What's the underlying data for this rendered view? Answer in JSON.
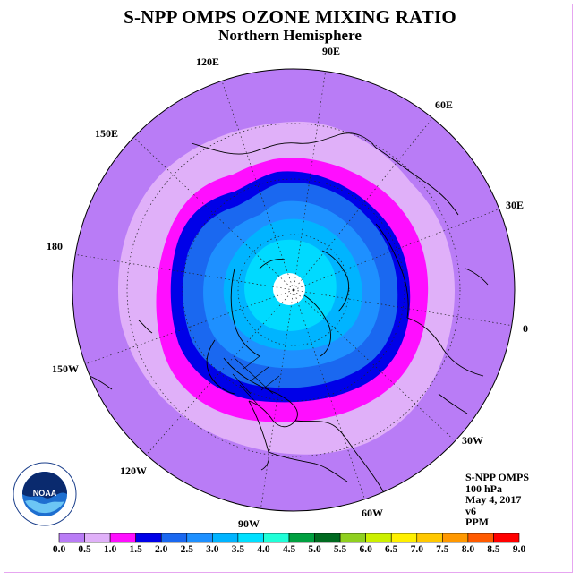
{
  "header": {
    "title": "S-NPP OMPS OZONE MIXING RATIO",
    "subtitle": "Northern Hemisphere"
  },
  "map": {
    "projection": "north-polar-stereographic",
    "longitude_labels": [
      "90E",
      "60E",
      "30E",
      "0",
      "30W",
      "60W",
      "90W",
      "120W",
      "150W",
      "180",
      "150E",
      "120E"
    ],
    "pole_no_data": true
  },
  "info": {
    "instrument": "S-NPP OMPS",
    "level": "100 hPa",
    "date": "May 4, 2017",
    "version": "v6",
    "units": "PPM"
  },
  "colorbar": {
    "labels": [
      "0.0",
      "0.5",
      "1.0",
      "1.5",
      "2.0",
      "2.5",
      "3.0",
      "3.5",
      "4.0",
      "4.5",
      "5.0",
      "5.5",
      "6.0",
      "6.5",
      "7.0",
      "7.5",
      "8.0",
      "8.5",
      "9.0"
    ],
    "colors": [
      "#b97cf6",
      "#e0b0f9",
      "#ff0eff",
      "#0000e8",
      "#1a68f0",
      "#1e90ff",
      "#00b4ff",
      "#00e0ff",
      "#20ffd8",
      "#00a040",
      "#006a20",
      "#90d020",
      "#ccf000",
      "#fff000",
      "#ffc800",
      "#ff9800",
      "#ff5a00",
      "#ff0000",
      "#8b5a3c"
    ]
  },
  "logo": {
    "name": "NOAA",
    "ring_text": "NATIONAL OCEANIC AND ATMOSPHERIC ADMINISTRATION",
    "bottom_text": "U.S. DEPARTMENT OF COMMERCE"
  }
}
